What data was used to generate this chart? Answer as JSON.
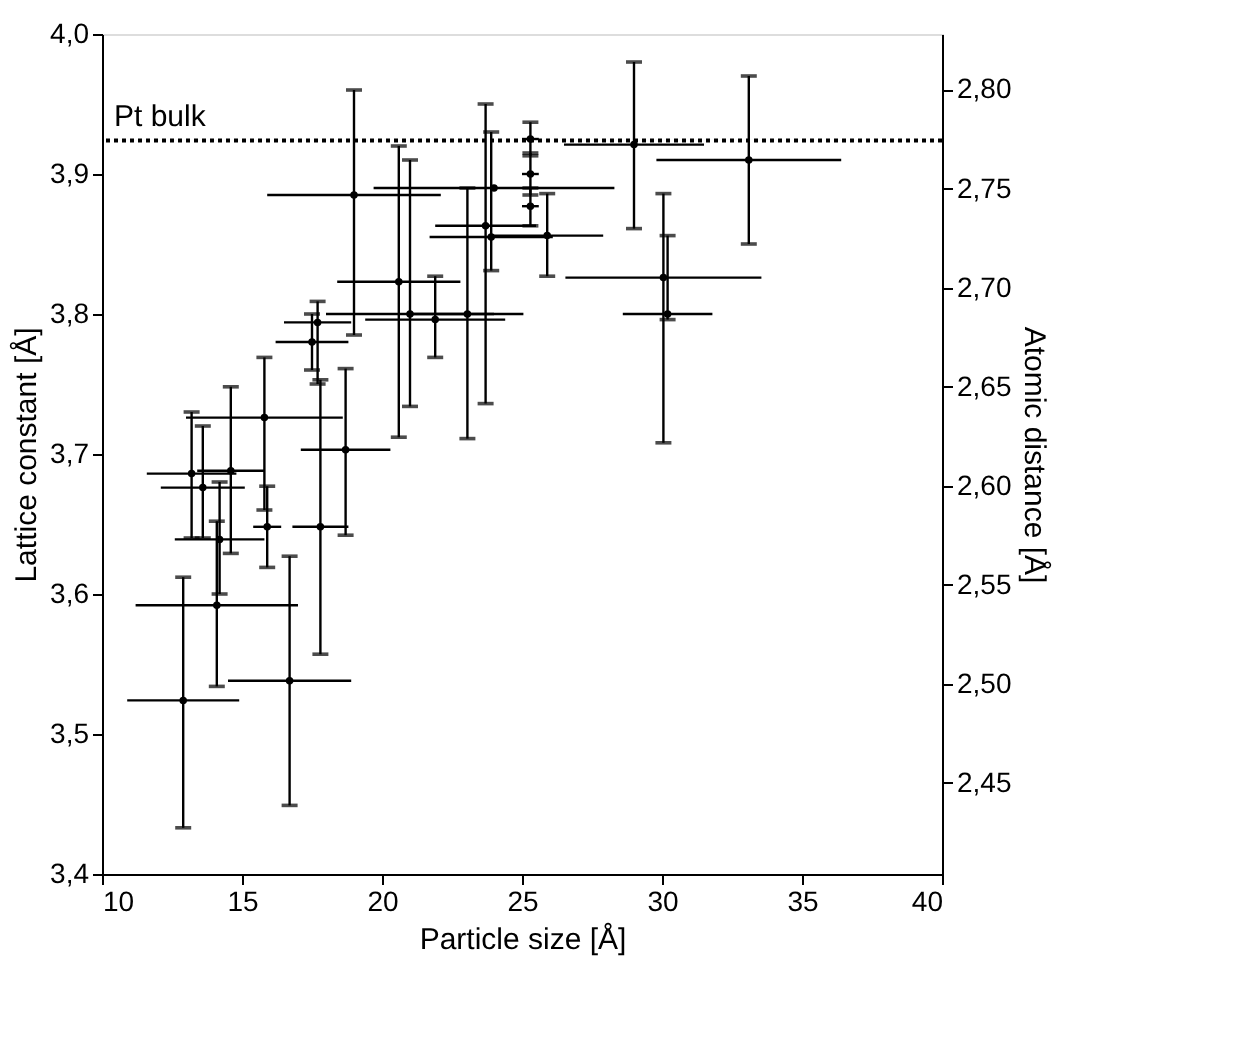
{
  "chart_data": {
    "type": "scatter",
    "xlabel": "Particle size [Å]",
    "ylabel": "Lattice constant [Å]",
    "y2label": "Atomic distance [Å]",
    "xlim": [
      10,
      40
    ],
    "xticks": [
      10,
      15,
      20,
      25,
      30,
      35,
      40
    ],
    "ylim": [
      3.4,
      4.0
    ],
    "yticks": [
      {
        "value": 3.4,
        "label": "3,4"
      },
      {
        "value": 3.5,
        "label": "3,5"
      },
      {
        "value": 3.6,
        "label": "3,6"
      },
      {
        "value": 3.7,
        "label": "3,7"
      },
      {
        "value": 3.8,
        "label": "3,8"
      },
      {
        "value": 3.9,
        "label": "3,9"
      },
      {
        "value": 4.0,
        "label": "4,0"
      }
    ],
    "y2lim": [
      2.404,
      2.828
    ],
    "y2ticks": [
      {
        "value": 2.45,
        "label": "2,45"
      },
      {
        "value": 2.5,
        "label": "2,50"
      },
      {
        "value": 2.55,
        "label": "2,55"
      },
      {
        "value": 2.6,
        "label": "2,60"
      },
      {
        "value": 2.65,
        "label": "2,65"
      },
      {
        "value": 2.7,
        "label": "2,70"
      },
      {
        "value": 2.75,
        "label": "2,75"
      },
      {
        "value": 2.8,
        "label": "2,80"
      }
    ],
    "grid": false,
    "legend": false,
    "marker": "none",
    "ref_lines": [
      {
        "axis": "y",
        "value": 3.924,
        "label": "Pt bulk",
        "color": "#000000",
        "line_style": "dotted"
      }
    ],
    "series": [
      {
        "color": "#000000",
        "x": [
          12.9,
          14.1,
          16.7,
          14.2,
          13.6,
          13.2,
          14.6,
          15.8,
          18.7,
          17.8,
          15.9,
          17.7,
          17.5,
          19.0,
          20.6,
          21.0,
          21.9,
          23.05,
          23.7,
          23.9,
          25.9,
          24.0,
          25.3,
          25.3,
          25.3,
          29.0,
          33.1,
          30.05,
          30.2
        ],
        "values": [
          3.524,
          3.592,
          3.538,
          3.639,
          3.676,
          3.686,
          3.688,
          3.726,
          3.703,
          3.648,
          3.648,
          3.794,
          3.78,
          3.885,
          3.823,
          3.8,
          3.796,
          3.8,
          3.863,
          3.855,
          3.856,
          3.89,
          3.925,
          3.9,
          3.877,
          3.921,
          3.91,
          3.826,
          3.8
        ],
        "errors": [
          [
            3.433,
            3.612
          ],
          [
            3.534,
            3.652
          ],
          [
            3.449,
            3.627
          ],
          [
            3.6,
            3.68
          ],
          [
            3.64,
            3.72
          ],
          [
            3.64,
            3.73
          ],
          [
            3.629,
            3.748
          ],
          [
            3.66,
            3.769
          ],
          [
            3.642,
            3.761
          ],
          [
            3.557,
            3.753
          ],
          [
            3.619,
            3.677
          ],
          [
            3.75,
            3.809
          ],
          [
            3.76,
            3.8
          ],
          [
            3.785,
            3.96
          ],
          [
            3.712,
            3.92
          ],
          [
            3.734,
            3.91
          ],
          [
            3.769,
            3.827
          ],
          [
            3.711,
            3.89
          ],
          [
            3.736,
            3.95
          ],
          [
            3.831,
            3.93
          ],
          [
            3.827,
            3.886
          ],
          null,
          [
            3.913,
            3.937
          ],
          [
            3.885,
            3.915
          ],
          [
            3.863,
            3.89
          ],
          [
            3.861,
            3.98
          ],
          [
            3.85,
            3.97
          ],
          [
            3.708,
            3.886
          ],
          [
            3.796,
            3.856
          ]
        ],
        "xerrors": [
          2.0,
          2.9,
          2.2,
          1.6,
          1.5,
          1.6,
          1.2,
          2.8,
          1.6,
          1.0,
          0.5,
          1.2,
          1.3,
          3.1,
          2.2,
          3.0,
          2.5,
          2.0,
          1.8,
          2.2,
          2.0,
          4.3,
          0.3,
          0.3,
          0.3,
          2.5,
          3.3,
          3.5,
          1.6
        ]
      }
    ]
  }
}
